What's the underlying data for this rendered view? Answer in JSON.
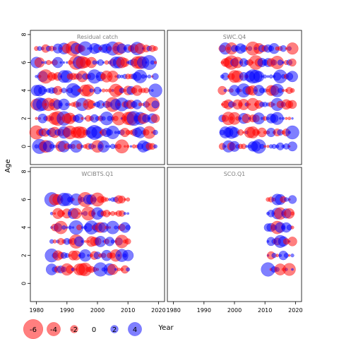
{
  "chart_data": {
    "type": "scatter",
    "subtype": "bubble-residuals",
    "xlabel": "Year",
    "ylabel": "Age",
    "xlim": [
      1978,
      2022
    ],
    "ylim": [
      -1.3,
      8.3
    ],
    "x_ticks": [
      "1980",
      "1990",
      "2000",
      "2010",
      "2020"
    ],
    "y_ticks": [
      "0",
      "2",
      "4",
      "6",
      "8"
    ],
    "colors": {
      "positive": "#0000ff",
      "negative": "#ff0000"
    },
    "legend": {
      "placement": "bottom-left",
      "entries": [
        {
          "value": -6,
          "label": "-6"
        },
        {
          "value": -4,
          "label": "-4"
        },
        {
          "value": -2,
          "label": "-2"
        },
        {
          "value": 0,
          "label": "0"
        },
        {
          "value": 2,
          "label": "2"
        },
        {
          "value": 4,
          "label": "4"
        }
      ]
    },
    "panels": [
      {
        "title": "Residual catch",
        "years": [
          1980,
          2019
        ],
        "ages": [
          0,
          1,
          2,
          3,
          4,
          5,
          6,
          7
        ]
      },
      {
        "title": "SWC.Q4",
        "years": [
          1996,
          2019
        ],
        "ages": [
          0,
          1,
          2,
          3,
          4,
          5,
          6,
          7
        ]
      },
      {
        "title": "WCIBTS.Q1",
        "years": [
          1985,
          2010
        ],
        "ages": [
          1,
          2,
          3,
          4,
          5,
          6
        ]
      },
      {
        "title": "SCO.Q1",
        "years": [
          2011,
          2019
        ],
        "ages": [
          1,
          2,
          3,
          4,
          5,
          6
        ]
      }
    ]
  }
}
